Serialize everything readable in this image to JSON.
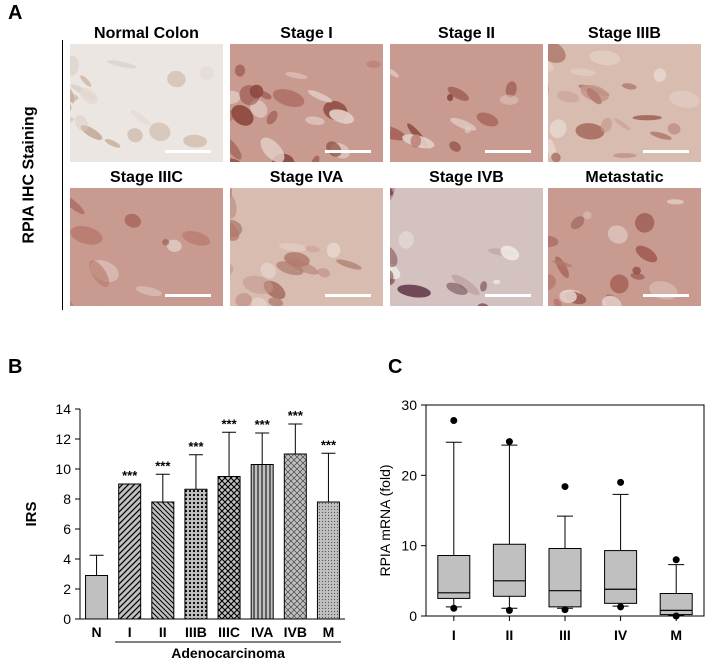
{
  "panels": {
    "a": "A",
    "b": "B",
    "c": "C"
  },
  "ihc": {
    "side_label": "RPIA IHC Staining",
    "tiles": [
      {
        "title": "Normal Colon",
        "tissue": "pale",
        "edge": "none"
      },
      {
        "title": "Stage I",
        "tissue": "brown",
        "edge": "round"
      },
      {
        "title": "Stage II",
        "tissue": "brown",
        "edge": "none"
      },
      {
        "title": "Stage IIIB",
        "tissue": "mixed",
        "edge": "none"
      },
      {
        "title": "Stage IIIC",
        "tissue": "brown",
        "edge": "round"
      },
      {
        "title": "Stage IVA",
        "tissue": "mixed",
        "edge": "round"
      },
      {
        "title": "Stage IVB",
        "tissue": "purple",
        "edge": "round"
      },
      {
        "title": "Metastatic",
        "tissue": "brown",
        "edge": "none"
      }
    ]
  },
  "chart_data": [
    {
      "type": "bar",
      "ylabel": "IRS",
      "xlabel": "",
      "ylim": [
        0,
        14
      ],
      "yticks": [
        0,
        2,
        4,
        6,
        8,
        10,
        12,
        14
      ],
      "categories": [
        "N",
        "I",
        "II",
        "IIIB",
        "IIIC",
        "IVA",
        "IVB",
        "M"
      ],
      "values": [
        2.9,
        9.0,
        7.8,
        8.65,
        9.5,
        10.3,
        11.0,
        7.8
      ],
      "error_upper": [
        1.35,
        0,
        1.85,
        2.3,
        2.95,
        2.1,
        2.0,
        3.25
      ],
      "significance": [
        "",
        "***",
        "***",
        "***",
        "***",
        "***",
        "***",
        "***"
      ],
      "fills": [
        "solid",
        "diagonal",
        "back-diagonal",
        "dots",
        "crosshatch",
        "vertical",
        "diamond",
        "dense-dots"
      ],
      "group_label": "Adenocarcinoma",
      "colors": {
        "bar": "#c0c0c0",
        "stroke": "#000000"
      }
    },
    {
      "type": "box",
      "ylabel": "RPIA mRNA (fold)",
      "xlabel": "",
      "ylim": [
        0,
        30
      ],
      "yticks": [
        0,
        10,
        20,
        30
      ],
      "categories": [
        "I",
        "II",
        "III",
        "IV",
        "M"
      ],
      "boxes": [
        {
          "whisker_low": 1.3,
          "q1": 2.5,
          "median": 3.3,
          "q3": 8.6,
          "whisker_high": 24.7,
          "outliers": [
            1.1,
            27.8
          ]
        },
        {
          "whisker_low": 1.1,
          "q1": 2.8,
          "median": 5.0,
          "q3": 10.2,
          "whisker_high": 24.3,
          "outliers": [
            0.8,
            24.8
          ]
        },
        {
          "whisker_low": 1.1,
          "q1": 1.3,
          "median": 3.6,
          "q3": 9.6,
          "whisker_high": 14.2,
          "outliers": [
            0.9,
            18.4
          ]
        },
        {
          "whisker_low": 1.4,
          "q1": 1.8,
          "median": 3.8,
          "q3": 9.3,
          "whisker_high": 17.3,
          "outliers": [
            1.3,
            19.0
          ]
        },
        {
          "whisker_low": 0.1,
          "q1": 0.2,
          "median": 0.8,
          "q3": 3.2,
          "whisker_high": 7.3,
          "outliers": [
            0.0,
            8.0
          ]
        }
      ],
      "colors": {
        "box": "#c0c0c0",
        "stroke": "#000000"
      }
    }
  ]
}
